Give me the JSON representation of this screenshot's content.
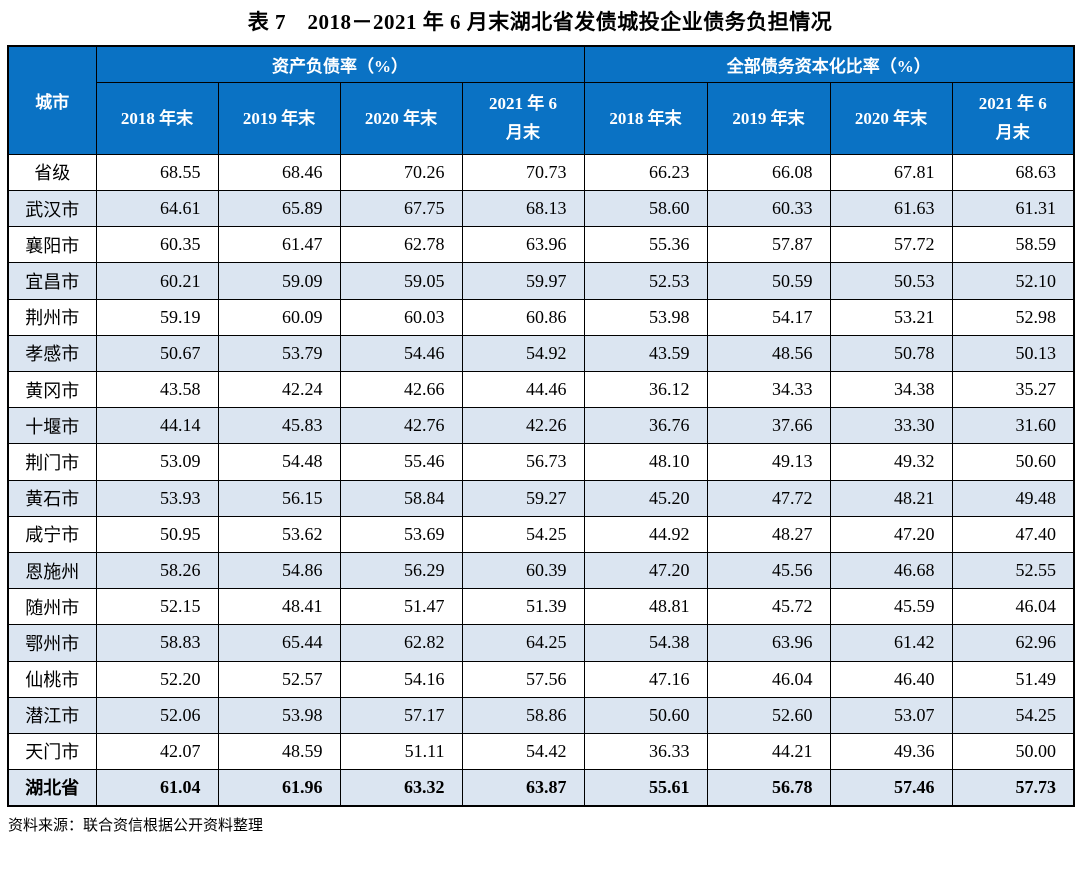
{
  "title": "表 7　2018－2021 年 6 月末湖北省发债城投企业债务负担情况",
  "source": "资料来源：联合资信根据公开资料整理",
  "colors": {
    "header_bg": "#0A72C4",
    "stripe_bg": "#DBE5F1",
    "border": "#000000",
    "header_text": "#FFFFFF"
  },
  "table": {
    "corner_header": "城市",
    "groups": [
      {
        "label": "资产负债率（%）",
        "columns": [
          "2018 年末",
          "2019 年末",
          "2020 年末",
          "2021 年 6 月末"
        ]
      },
      {
        "label": "全部债务资本化比率（%）",
        "columns": [
          "2018 年末",
          "2019 年末",
          "2020 年末",
          "2021 年 6 月末"
        ]
      }
    ],
    "rows": [
      {
        "city": "省级",
        "values": [
          "68.55",
          "68.46",
          "70.26",
          "70.73",
          "66.23",
          "66.08",
          "67.81",
          "68.63"
        ]
      },
      {
        "city": "武汉市",
        "values": [
          "64.61",
          "65.89",
          "67.75",
          "68.13",
          "58.60",
          "60.33",
          "61.63",
          "61.31"
        ]
      },
      {
        "city": "襄阳市",
        "values": [
          "60.35",
          "61.47",
          "62.78",
          "63.96",
          "55.36",
          "57.87",
          "57.72",
          "58.59"
        ]
      },
      {
        "city": "宜昌市",
        "values": [
          "60.21",
          "59.09",
          "59.05",
          "59.97",
          "52.53",
          "50.59",
          "50.53",
          "52.10"
        ]
      },
      {
        "city": "荆州市",
        "values": [
          "59.19",
          "60.09",
          "60.03",
          "60.86",
          "53.98",
          "54.17",
          "53.21",
          "52.98"
        ]
      },
      {
        "city": "孝感市",
        "values": [
          "50.67",
          "53.79",
          "54.46",
          "54.92",
          "43.59",
          "48.56",
          "50.78",
          "50.13"
        ]
      },
      {
        "city": "黄冈市",
        "values": [
          "43.58",
          "42.24",
          "42.66",
          "44.46",
          "36.12",
          "34.33",
          "34.38",
          "35.27"
        ]
      },
      {
        "city": "十堰市",
        "values": [
          "44.14",
          "45.83",
          "42.76",
          "42.26",
          "36.76",
          "37.66",
          "33.30",
          "31.60"
        ]
      },
      {
        "city": "荆门市",
        "values": [
          "53.09",
          "54.48",
          "55.46",
          "56.73",
          "48.10",
          "49.13",
          "49.32",
          "50.60"
        ]
      },
      {
        "city": "黄石市",
        "values": [
          "53.93",
          "56.15",
          "58.84",
          "59.27",
          "45.20",
          "47.72",
          "48.21",
          "49.48"
        ]
      },
      {
        "city": "咸宁市",
        "values": [
          "50.95",
          "53.62",
          "53.69",
          "54.25",
          "44.92",
          "48.27",
          "47.20",
          "47.40"
        ]
      },
      {
        "city": "恩施州",
        "values": [
          "58.26",
          "54.86",
          "56.29",
          "60.39",
          "47.20",
          "45.56",
          "46.68",
          "52.55"
        ]
      },
      {
        "city": "随州市",
        "values": [
          "52.15",
          "48.41",
          "51.47",
          "51.39",
          "48.81",
          "45.72",
          "45.59",
          "46.04"
        ]
      },
      {
        "city": "鄂州市",
        "values": [
          "58.83",
          "65.44",
          "62.82",
          "64.25",
          "54.38",
          "63.96",
          "61.42",
          "62.96"
        ]
      },
      {
        "city": "仙桃市",
        "values": [
          "52.20",
          "52.57",
          "54.16",
          "57.56",
          "47.16",
          "46.04",
          "46.40",
          "51.49"
        ]
      },
      {
        "city": "潜江市",
        "values": [
          "52.06",
          "53.98",
          "57.17",
          "58.86",
          "50.60",
          "52.60",
          "53.07",
          "54.25"
        ]
      },
      {
        "city": "天门市",
        "values": [
          "42.07",
          "48.59",
          "51.11",
          "54.42",
          "36.33",
          "44.21",
          "49.36",
          "50.00"
        ]
      },
      {
        "city": "湖北省",
        "values": [
          "61.04",
          "61.96",
          "63.32",
          "63.87",
          "55.61",
          "56.78",
          "57.46",
          "57.73"
        ],
        "bold": true
      }
    ]
  }
}
